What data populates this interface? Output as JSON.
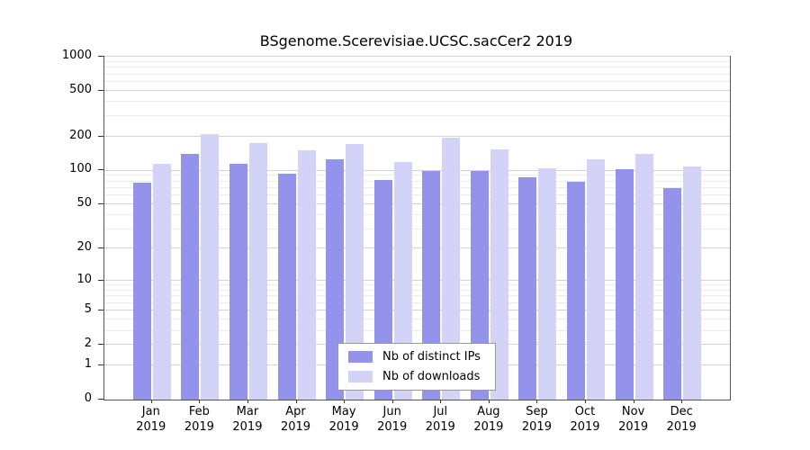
{
  "title": "BSgenome.Scerevisiae.UCSC.sacCer2 2019",
  "chart_data": {
    "type": "bar",
    "title": "BSgenome.Scerevisiae.UCSC.sacCer2 2019",
    "categories": [
      "Jan",
      "Feb",
      "Mar",
      "Apr",
      "May",
      "Jun",
      "Jul",
      "Aug",
      "Sep",
      "Oct",
      "Nov",
      "Dec"
    ],
    "x_sublabel": "2019",
    "series": [
      {
        "name": "Nb of distinct IPs",
        "color": "#9393ec",
        "values": [
          78,
          140,
          115,
          93,
          125,
          82,
          100,
          100,
          87,
          80,
          103,
          70
        ]
      },
      {
        "name": "Nb of downloads",
        "color": "#d3d3f8",
        "values": [
          115,
          210,
          175,
          150,
          170,
          120,
          195,
          155,
          105,
          125,
          140,
          108
        ]
      }
    ],
    "y_ticks": [
      0,
      1,
      2,
      5,
      10,
      20,
      50,
      100,
      200,
      500,
      1000
    ],
    "y_minor_ticks": [
      3,
      4,
      6,
      7,
      8,
      9,
      30,
      40,
      60,
      70,
      80,
      90,
      300,
      400,
      600,
      700,
      800,
      900
    ],
    "scale": "log1p",
    "ylim": [
      0,
      1000
    ],
    "grid": true,
    "legend_position": "bottom-center"
  },
  "colors": {
    "grid_major": "#d4d4d4",
    "grid_minor": "#ececec",
    "axis": "#555555",
    "background": "#ffffff"
  }
}
